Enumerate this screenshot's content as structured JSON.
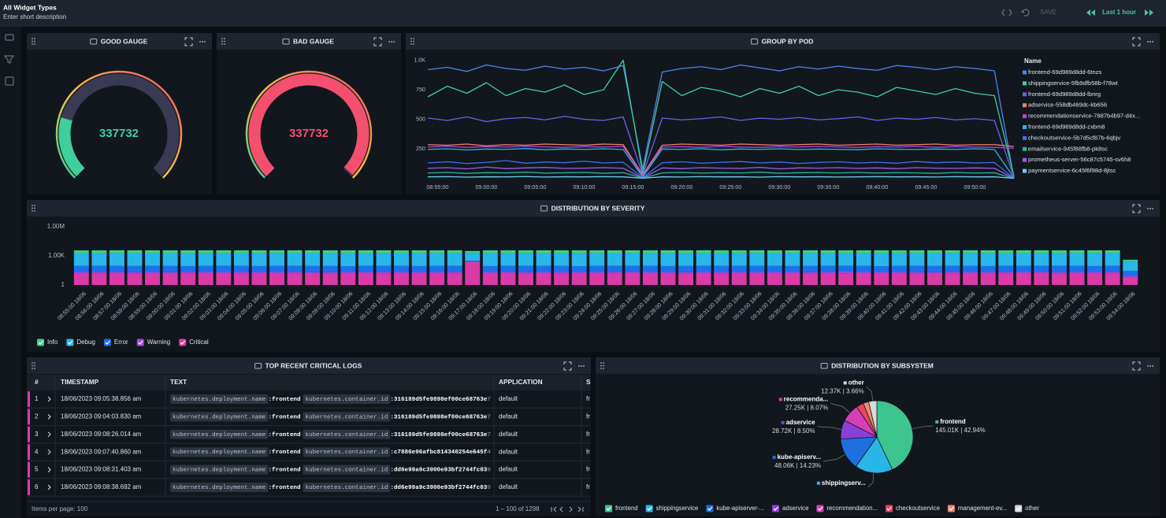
{
  "header": {
    "title": "All Widget Types",
    "description": "Enter short description",
    "save": "SAVE",
    "time_range": "Last 1 hour"
  },
  "chart_data": [
    {
      "type": "gauge",
      "title": "GOOD GAUGE",
      "value": 337732,
      "min": 0,
      "max": 1500000,
      "color": "#3ecf9a"
    },
    {
      "type": "gauge",
      "title": "BAD GAUGE",
      "value": 337732,
      "min": 0,
      "max": 340000,
      "color": "#f2506e"
    },
    {
      "type": "line",
      "title": "GROUP BY POD",
      "legend_title": "Name",
      "x": [
        "08:54:00",
        "08:56:00",
        "08:58:00",
        "09:00:00",
        "09:02:00",
        "09:04:00",
        "09:06:00",
        "09:08:00",
        "09:10:00",
        "09:12:00",
        "09:14:00",
        "09:16:00",
        "09:18:00",
        "09:20:00",
        "09:22:00",
        "09:24:00",
        "09:26:00",
        "09:28:00",
        "09:30:00",
        "09:32:00",
        "09:34:00",
        "09:36:00",
        "09:38:00",
        "09:40:00",
        "09:42:00",
        "09:44:00",
        "09:46:00",
        "09:48:00",
        "09:50:00",
        "09:52:00",
        "09:54:00"
      ],
      "xlim": [
        "08:54:00",
        "09:54:00"
      ],
      "xticks": [
        "08:55:00",
        "09:00:00",
        "09:05:00",
        "09:10:00",
        "09:15:00",
        "09:20:00",
        "09:25:00",
        "09:30:00",
        "09:35:00",
        "09:40:00",
        "09:45:00",
        "09:50:00"
      ],
      "ylim": [
        0,
        1000
      ],
      "yticks": [
        250,
        500,
        750,
        {
          "value": 1000,
          "label": "1.0K"
        }
      ],
      "series": [
        {
          "name": "frontend-69d989d8dd-6tnzs",
          "color": "#4a86f0",
          "values": [
            920,
            940,
            905,
            960,
            930,
            915,
            950,
            925,
            940,
            910,
            955,
            80,
            900,
            930,
            945,
            920,
            960,
            935,
            910,
            945,
            925,
            950,
            930,
            915,
            955,
            940,
            920,
            945,
            930,
            910,
            0
          ]
        },
        {
          "name": "shippingservice-5fb9dfb58b-f78wt",
          "color": "#3ecf9a",
          "values": [
            690,
            780,
            720,
            810,
            700,
            760,
            730,
            790,
            710,
            750,
            1000,
            40,
            820,
            700,
            770,
            740,
            690,
            760,
            720,
            780,
            700,
            750,
            730,
            690,
            770,
            740,
            710,
            760,
            720,
            700,
            20
          ]
        },
        {
          "name": "frontend-69d989d8dd-lbnrg",
          "color": "#6a62e8",
          "values": [
            510,
            490,
            520,
            480,
            505,
            515,
            495,
            525,
            500,
            490,
            520,
            30,
            510,
            495,
            505,
            520,
            490,
            510,
            500,
            515,
            495,
            505,
            520,
            490,
            510,
            500,
            515,
            495,
            505,
            490,
            10
          ]
        },
        {
          "name": "adservice-558db469dc-kb656",
          "color": "#f0806a",
          "values": [
            285,
            280,
            290,
            275,
            285,
            280,
            290,
            285,
            280,
            290,
            285,
            30,
            280,
            290,
            285,
            280,
            290,
            285,
            280,
            285,
            290,
            280,
            285,
            290,
            280,
            285,
            290,
            280,
            285,
            285,
            270
          ]
        },
        {
          "name": "recommendationservice-7887b4b97-d4x...",
          "color": "#b844d8",
          "values": [
            265,
            270,
            262,
            268,
            265,
            270,
            266,
            262,
            268,
            265,
            270,
            20,
            265,
            268,
            262,
            270,
            265,
            262,
            268,
            265,
            270,
            266,
            262,
            268,
            265,
            270,
            262,
            268,
            265,
            262,
            255
          ]
        },
        {
          "name": "frontend-69d989d8dd-zxbm8",
          "color": "#22b8e6",
          "values": [
            245,
            250,
            240,
            248,
            245,
            252,
            242,
            248,
            245,
            250,
            244,
            10,
            248,
            245,
            250,
            242,
            248,
            245,
            250,
            244,
            248,
            245,
            242,
            250,
            246,
            244,
            248,
            245,
            250,
            244,
            5
          ]
        },
        {
          "name": "checkoutservice-5b7d5cf87b-6qbjv",
          "color": "#3f6ff0",
          "values": [
            130,
            140,
            125,
            135,
            150,
            128,
            138,
            132,
            145,
            130,
            136,
            5,
            132,
            140,
            128,
            135,
            142,
            130,
            138,
            126,
            134,
            140,
            130,
            136,
            128,
            142,
            132,
            138,
            130,
            134,
            0
          ]
        },
        {
          "name": "emailservice-945f88fb8-pk8sc",
          "color": "#2bb39b",
          "values": [
            45,
            50,
            42,
            48,
            46,
            52,
            44,
            47,
            50,
            43,
            48,
            2,
            46,
            50,
            44,
            48,
            45,
            52,
            43,
            47,
            49,
            45,
            50,
            44,
            48,
            46,
            42,
            49,
            45,
            47,
            0
          ]
        },
        {
          "name": "prometheus-server-56c87c5745-sv6h8",
          "color": "#9c5ce6",
          "values": [
            85,
            90,
            80,
            95,
            82,
            88,
            92,
            84,
            86,
            90,
            85,
            3,
            88,
            82,
            90,
            86,
            84,
            92,
            80,
            88,
            86,
            90,
            84,
            88,
            82,
            90,
            86,
            84,
            88,
            85,
            0
          ]
        },
        {
          "name": "paymentservice-6c45f6f98d-8jtsc",
          "color": "#64d2ec",
          "values": [
            12,
            14,
            10,
            13,
            12,
            15,
            11,
            13,
            12,
            14,
            12,
            1,
            13,
            11,
            14,
            12,
            13,
            10,
            14,
            12,
            13,
            11,
            12,
            14,
            12,
            13,
            11,
            14,
            12,
            13,
            0
          ]
        }
      ]
    },
    {
      "type": "bar",
      "stacked": true,
      "log_scale": true,
      "title": "DISTRIBUTION BY SEVERITY",
      "categories": [
        "08:55:00 18/06",
        "08:56:00 18/06",
        "08:57:00 18/06",
        "08:58:00 18/06",
        "08:59:00 18/06",
        "09:00:00 18/06",
        "09:01:00 18/06",
        "09:02:00 18/06",
        "09:03:00 18/06",
        "09:04:00 18/06",
        "09:05:00 18/06",
        "09:06:00 18/06",
        "09:07:00 18/06",
        "09:08:00 18/06",
        "09:09:00 18/06",
        "09:10:00 18/06",
        "09:11:00 18/06",
        "09:12:00 18/06",
        "09:13:00 18/06",
        "09:14:00 18/06",
        "09:15:00 18/06",
        "09:16:00 18/06",
        "09:17:00 18/06",
        "09:18:00 18/06",
        "09:19:00 18/06",
        "09:20:00 18/06",
        "09:21:00 18/06",
        "09:22:00 18/06",
        "09:23:00 18/06",
        "09:24:00 18/06",
        "09:25:00 18/06",
        "09:26:00 18/06",
        "09:27:00 18/06",
        "09:28:00 18/06",
        "09:29:00 18/06",
        "09:30:00 18/06",
        "09:31:00 18/06",
        "09:32:00 18/06",
        "09:33:00 18/06",
        "09:34:00 18/06",
        "09:35:00 18/06",
        "09:36:00 18/06",
        "09:37:00 18/06",
        "09:38:00 18/06",
        "09:39:00 18/06",
        "09:40:00 18/06",
        "09:41:00 18/06",
        "09:42:00 18/06",
        "09:43:00 18/06",
        "09:44:00 18/06",
        "09:45:00 18/06",
        "09:46:00 18/06",
        "09:47:00 18/06",
        "09:48:00 18/06",
        "09:49:00 18/06",
        "09:50:00 18/06",
        "09:51:00 18/06",
        "09:52:00 18/06",
        "09:53:00 18/06",
        "09:54:00 18/06"
      ],
      "ylim": [
        1,
        1000000
      ],
      "yticks": [
        1,
        {
          "value": 1000,
          "label": "1.00K"
        },
        {
          "value": 1000000,
          "label": "1.00M"
        }
      ],
      "series": [
        {
          "name": "Info",
          "color": "#3ecf8e",
          "values": [
            1850,
            1900,
            1950,
            1900,
            1880,
            1920,
            1900,
            1870,
            1930,
            1900,
            1910,
            1890,
            1900,
            1940,
            1880,
            1900,
            1920,
            1900,
            1860,
            1900,
            1910,
            1950,
            1200,
            1900,
            1890,
            1900,
            1930,
            1900,
            1880,
            1910,
            1900,
            1920,
            1870,
            1900,
            1900,
            1940,
            1890,
            1900,
            1910,
            1880,
            1900,
            1930,
            1900,
            1900,
            1870,
            1920,
            1900,
            1910,
            1890,
            1900,
            1950,
            1900,
            1880,
            1900,
            1920,
            1900,
            1910,
            1890,
            1900,
            120
          ]
        },
        {
          "name": "Debug",
          "color": "#29b6e8",
          "values": [
            1700,
            1680,
            1720,
            1700,
            1710,
            1690,
            1700,
            1730,
            1700,
            1690,
            1700,
            1720,
            1700,
            1680,
            1710,
            1700,
            1690,
            1720,
            1700,
            1710,
            1700,
            1690,
            1650,
            1710,
            1700,
            1720,
            1690,
            1700,
            1710,
            1700,
            1680,
            1700,
            1720,
            1700,
            1690,
            1710,
            1700,
            1700,
            1720,
            1690,
            1700,
            1710,
            1700,
            1680,
            1720,
            1700,
            1690,
            1700,
            1710,
            1700,
            1720,
            1700,
            1690,
            1710,
            1700,
            1680,
            1700,
            1720,
            1700,
            250
          ]
        },
        {
          "name": "Error",
          "color": "#1f6feb",
          "values": [
            70,
            72,
            68,
            70,
            75,
            70,
            66,
            70,
            72,
            70,
            68,
            70,
            74,
            70,
            70,
            66,
            72,
            70,
            70,
            68,
            70,
            72,
            70,
            68,
            70,
            74,
            70,
            70,
            66,
            70,
            72,
            70,
            70,
            68,
            70,
            72,
            70,
            74,
            70,
            70,
            68,
            70,
            72,
            70,
            70,
            66,
            70,
            72,
            70,
            70,
            70,
            68,
            72,
            70,
            70,
            74,
            70,
            68,
            70,
            20
          ]
        },
        {
          "name": "Warning",
          "color": "#9b4be0",
          "values": [
            7,
            7,
            8,
            7,
            7,
            6,
            7,
            7,
            7,
            8,
            7,
            7,
            7,
            6,
            7,
            7,
            8,
            7,
            7,
            7,
            7,
            7,
            7,
            7,
            8,
            7,
            7,
            6,
            7,
            7,
            7,
            8,
            7,
            7,
            7,
            7,
            6,
            7,
            7,
            7,
            7,
            7,
            7,
            8,
            7,
            7,
            7,
            7,
            6,
            7,
            7,
            7,
            7,
            7,
            8,
            7,
            7,
            7,
            7,
            3
          ]
        },
        {
          "name": "Critical",
          "color": "#d93aa8",
          "values": [
            15,
            16,
            15,
            14,
            15,
            15,
            16,
            15,
            15,
            14,
            15,
            15,
            16,
            15,
            14,
            15,
            15,
            16,
            15,
            15,
            15,
            16,
            250,
            15,
            15,
            14,
            15,
            16,
            15,
            15,
            16,
            15,
            15,
            15,
            14,
            15,
            16,
            15,
            15,
            15,
            15,
            14,
            15,
            16,
            15,
            15,
            15,
            14,
            15,
            16,
            15,
            15,
            16,
            15,
            15,
            14,
            15,
            15,
            16,
            6
          ]
        }
      ]
    },
    {
      "type": "pie",
      "title": "DISTRIBUTION BY SUBSYSTEM",
      "categories": [
        "frontend",
        "shippingservice",
        "kube-apiserver-...",
        "adservice",
        "recommendation...",
        "checkoutservice",
        "management-ev...",
        "other"
      ],
      "slice_labels": [
        "frontend",
        "shippingserv...",
        "kube-apiserv...",
        "adservice",
        "recommenda...",
        null,
        null,
        "other"
      ],
      "values": [
        145010,
        57000,
        48060,
        28720,
        27250,
        11000,
        8320,
        12370
      ],
      "value_labels": [
        "145.01K | 42.94%",
        null,
        "48.06K | 14.23%",
        "28.72K | 8.50%",
        "27.25K | 8.07%",
        null,
        null,
        "12.37K | 3.66%"
      ],
      "colors": [
        "#3ec48f",
        "#29b6e6",
        "#1f6fe0",
        "#8b3fd9",
        "#d63fb8",
        "#e84560",
        "#f08a6e",
        "#d9d9d9"
      ]
    }
  ],
  "logs_table": {
    "title": "TOP RECENT CRITICAL LOGS",
    "columns": [
      "#",
      "TIMESTAMP",
      "TEXT",
      "APPLICATION",
      "S"
    ],
    "rows": [
      {
        "index": 1,
        "timestamp": "18/06/2023 09:05:38.856 am",
        "text": [
          "kubernetes.deployment.name",
          ":frontend",
          "kubernetes.container.id",
          ":316189d5fe9898ef00ce68763e7"
        ],
        "application": "default",
        "subsystem": "fr"
      },
      {
        "index": 2,
        "timestamp": "18/06/2023 09:04:03.830 am",
        "text": [
          "kubernetes.deployment.name",
          ":frontend",
          "kubernetes.container.id",
          ":316189d5fe9898ef00ce68763e7"
        ],
        "application": "default",
        "subsystem": "fr"
      },
      {
        "index": 3,
        "timestamp": "18/06/2023 09:08:26.014 am",
        "text": [
          "kubernetes.deployment.name",
          ":frontend",
          "kubernetes.container.id",
          ":316189d5fe9898ef00ce68763e7"
        ],
        "application": "default",
        "subsystem": "fr"
      },
      {
        "index": 4,
        "timestamp": "18/06/2023 09:07:40.860 am",
        "text": [
          "kubernetes.deployment.name",
          ":frontend",
          "kubernetes.container.id",
          ":c7886e96afbc814340254e645f4"
        ],
        "application": "default",
        "subsystem": "fr"
      },
      {
        "index": 5,
        "timestamp": "18/06/2023 09:08:31.403 am",
        "text": [
          "kubernetes.deployment.name",
          ":frontend",
          "kubernetes.container.id",
          ":dd6e99a9c3900e93bf2744fc039"
        ],
        "application": "default",
        "subsystem": "fr"
      },
      {
        "index": 6,
        "timestamp": "18/06/2023 09:08:38.692 am",
        "text": [
          "kubernetes.deployment.name",
          ":frontend",
          "kubernetes.container.id",
          ":dd6e99a9c3900e93bf2744fc039"
        ],
        "application": "default",
        "subsystem": "fr"
      }
    ],
    "items_per_page": "Items per page: 100",
    "range": "1 – 100 of 1298"
  }
}
